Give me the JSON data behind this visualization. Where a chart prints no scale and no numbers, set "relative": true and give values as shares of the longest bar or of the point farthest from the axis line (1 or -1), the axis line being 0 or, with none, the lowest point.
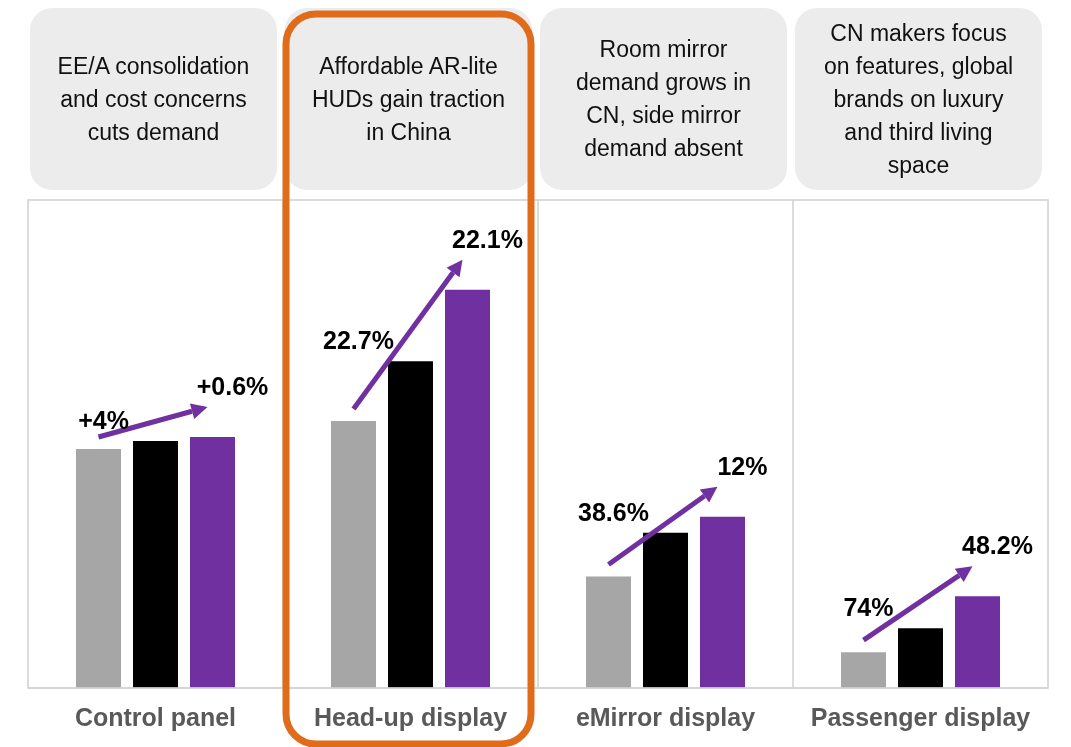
{
  "chart_data": {
    "type": "bar",
    "relative": true,
    "grid": false,
    "legend": false,
    "categories": [
      "Control panel",
      "Head-up display",
      "eMirror display",
      "Passenger display"
    ],
    "series": [
      {
        "color": "#a6a6a6",
        "values": [
          0.6,
          0.67,
          0.28,
          0.09
        ]
      },
      {
        "color": "#000000",
        "values": [
          0.62,
          0.82,
          0.39,
          0.15
        ]
      },
      {
        "color": "#7030a0",
        "values": [
          0.63,
          1,
          0.43,
          0.23
        ]
      }
    ],
    "annotations": [
      "EE/A consolidation and cost concerns cuts demand",
      "Affordable AR-lite HUDs gain traction in China",
      "Room mirror demand grows in CN, side mirror demand absent",
      "CN makers focus on features, global brands on luxury and third living space",
      "+4%",
      "+0.6%",
      "22.7%",
      "22.1%",
      "38.6%",
      "12%",
      "74%",
      "48.2%"
    ]
  }
}
